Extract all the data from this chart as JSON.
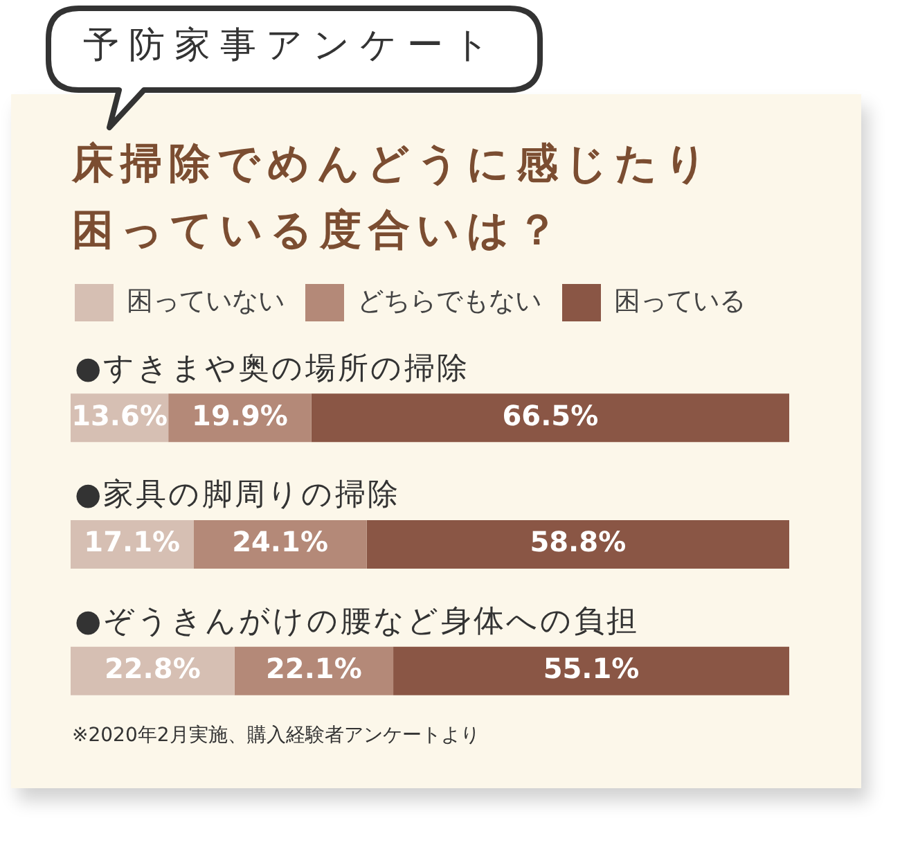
{
  "chart_data": {
    "type": "bar",
    "orientation": "horizontal",
    "stacked": true,
    "title": "床掃除でめんどうに感じたり困っている度合いは？",
    "subtitle": "予防家事アンケート",
    "annotations": [
      "※2020年2月実施、購入経験者アンケートより"
    ],
    "categories": [
      "●すきまや奥の場所の掃除",
      "●家具の脚周りの掃除",
      "●ぞうきんがけの腰など身体への負担"
    ],
    "series": [
      {
        "name": "困っていない",
        "color": "#d6bfb3",
        "values": [
          13.6,
          17.1,
          22.8
        ],
        "value_labels": [
          "13.6%",
          "17.1%",
          "22.8%"
        ]
      },
      {
        "name": "どちらでもない",
        "color": "#b48978",
        "values": [
          19.9,
          24.1,
          22.1
        ],
        "value_labels": [
          "19.9%",
          "24.1%",
          "22.1%"
        ]
      },
      {
        "name": "困っている",
        "color": "#8a5645",
        "values": [
          66.5,
          58.8,
          55.1
        ],
        "value_labels": [
          "66.5%",
          "58.8%",
          "55.1%"
        ]
      }
    ],
    "xlim": [
      0,
      100
    ],
    "legend": "top left",
    "tick_labels": "y"
  }
}
